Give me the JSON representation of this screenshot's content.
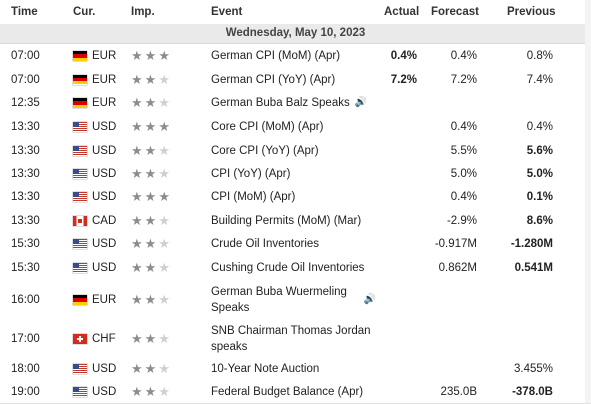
{
  "columns": {
    "time": "Time",
    "currency": "Cur.",
    "importance": "Imp.",
    "event": "Event",
    "actual": "Actual",
    "forecast": "Forecast",
    "previous": "Previous"
  },
  "date_header": "Wednesday, May 10, 2023",
  "colors": {
    "star_on": "#8c8c8c",
    "star_off": "#cfcfcf",
    "highlight": "#ffff3d"
  },
  "rows": [
    {
      "time": "07:00",
      "flag": "germany-flag-icon",
      "currency": "EUR",
      "importance": 3,
      "event": "German CPI (MoM) (Apr)",
      "actual": "0.4%",
      "forecast": "0.4%",
      "previous": "0.8%",
      "previous_bold": false
    },
    {
      "time": "07:00",
      "flag": "germany-flag-icon",
      "currency": "EUR",
      "importance": 2,
      "event": "German CPI (YoY) (Apr)",
      "actual": "7.2%",
      "forecast": "7.2%",
      "previous": "7.4%",
      "previous_bold": false
    },
    {
      "time": "12:35",
      "flag": "germany-flag-icon",
      "currency": "EUR",
      "importance": 2,
      "event": "German Buba Balz Speaks",
      "speaker": true,
      "actual": "",
      "forecast": "",
      "previous": "",
      "previous_bold": false
    },
    {
      "time": "13:30",
      "flag": "usa-flag-icon",
      "currency": "USD",
      "importance": 3,
      "event": "Core CPI (MoM) (Apr)",
      "actual": "",
      "forecast": "0.4%",
      "previous": "0.4%",
      "previous_bold": false
    },
    {
      "time": "13:30",
      "flag": "usa-flag-icon",
      "currency": "USD",
      "importance": 2,
      "event": "Core CPI (YoY) (Apr)",
      "actual": "",
      "forecast": "5.5%",
      "previous": "5.6%",
      "previous_bold": true
    },
    {
      "time": "13:30",
      "flag": "usa-flag-icon",
      "currency": "USD",
      "importance": 2,
      "event": "CPI (YoY) (Apr)",
      "actual": "",
      "forecast": "5.0%",
      "previous": "5.0%",
      "previous_bold": true
    },
    {
      "time": "13:30",
      "flag": "usa-flag-icon",
      "currency": "USD",
      "importance": 3,
      "event": "CPI (MoM) (Apr)",
      "actual": "",
      "forecast": "0.4%",
      "previous": "0.1%",
      "previous_bold": true
    },
    {
      "time": "13:30",
      "flag": "canada-flag-icon",
      "currency": "CAD",
      "importance": 2,
      "event": "Building Permits (MoM) (Mar)",
      "actual": "",
      "forecast": "-2.9%",
      "previous": "8.6%",
      "previous_bold": true
    },
    {
      "time": "15:30",
      "flag": "usa-flag-icon",
      "currency": "USD",
      "importance": 2,
      "event": "Crude Oil Inventories",
      "actual": "",
      "forecast": "-0.917M",
      "previous": "-1.280M",
      "previous_bold": true
    },
    {
      "time": "15:30",
      "flag": "usa-flag-icon",
      "currency": "USD",
      "importance": 2,
      "event": "Cushing Crude Oil Inventories",
      "actual": "",
      "forecast": "0.862M",
      "previous": "0.541M",
      "previous_bold": true
    },
    {
      "time": "16:00",
      "flag": "germany-flag-icon",
      "currency": "EUR",
      "importance": 2,
      "event": "German Buba Wuermeling Speaks",
      "speaker": true,
      "actual": "",
      "forecast": "",
      "previous": "",
      "previous_bold": false
    },
    {
      "time": "17:00",
      "flag": "switzerland-flag-icon",
      "currency": "CHF",
      "importance": 2,
      "event": "SNB Chairman Thomas Jordan speaks",
      "actual": "",
      "forecast": "",
      "previous": "",
      "previous_bold": false
    },
    {
      "time": "18:00",
      "flag": "usa-flag-icon",
      "currency": "USD",
      "importance": 2,
      "event": "10-Year Note Auction",
      "actual": "",
      "forecast": "",
      "previous": "3.455%",
      "previous_bold": false
    },
    {
      "time": "19:00",
      "flag": "usa-flag-icon",
      "currency": "USD",
      "importance": 2,
      "event": "Federal Budget Balance (Apr)",
      "actual": "",
      "forecast": "235.0B",
      "previous": "-378.0B",
      "previous_bold": true
    }
  ]
}
